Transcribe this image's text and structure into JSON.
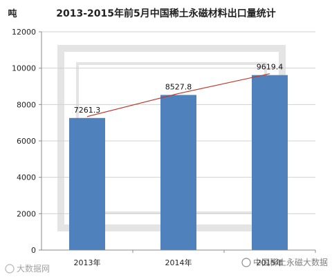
{
  "chart_data": {
    "type": "bar",
    "title": "2013-2015年前5月中国稀土永磁材料出口量统计",
    "ylabel": "吨",
    "xlabel": "",
    "categories": [
      "2013年",
      "2014年",
      "2015年"
    ],
    "values": [
      7261.3,
      8527.8,
      9619.4
    ],
    "data_labels": [
      "7261.3",
      "8527.8",
      "9619.4"
    ],
    "ylim": [
      0,
      12000
    ],
    "yticks": [
      0,
      2000,
      4000,
      6000,
      8000,
      10000,
      12000
    ],
    "grid": true,
    "legend": "none",
    "trendline": true,
    "bar_color": "#4f81bd",
    "trend_color": "#c0392b"
  },
  "watermarks": {
    "left": "大数据网",
    "right": "中国稀土永磁大数据"
  }
}
